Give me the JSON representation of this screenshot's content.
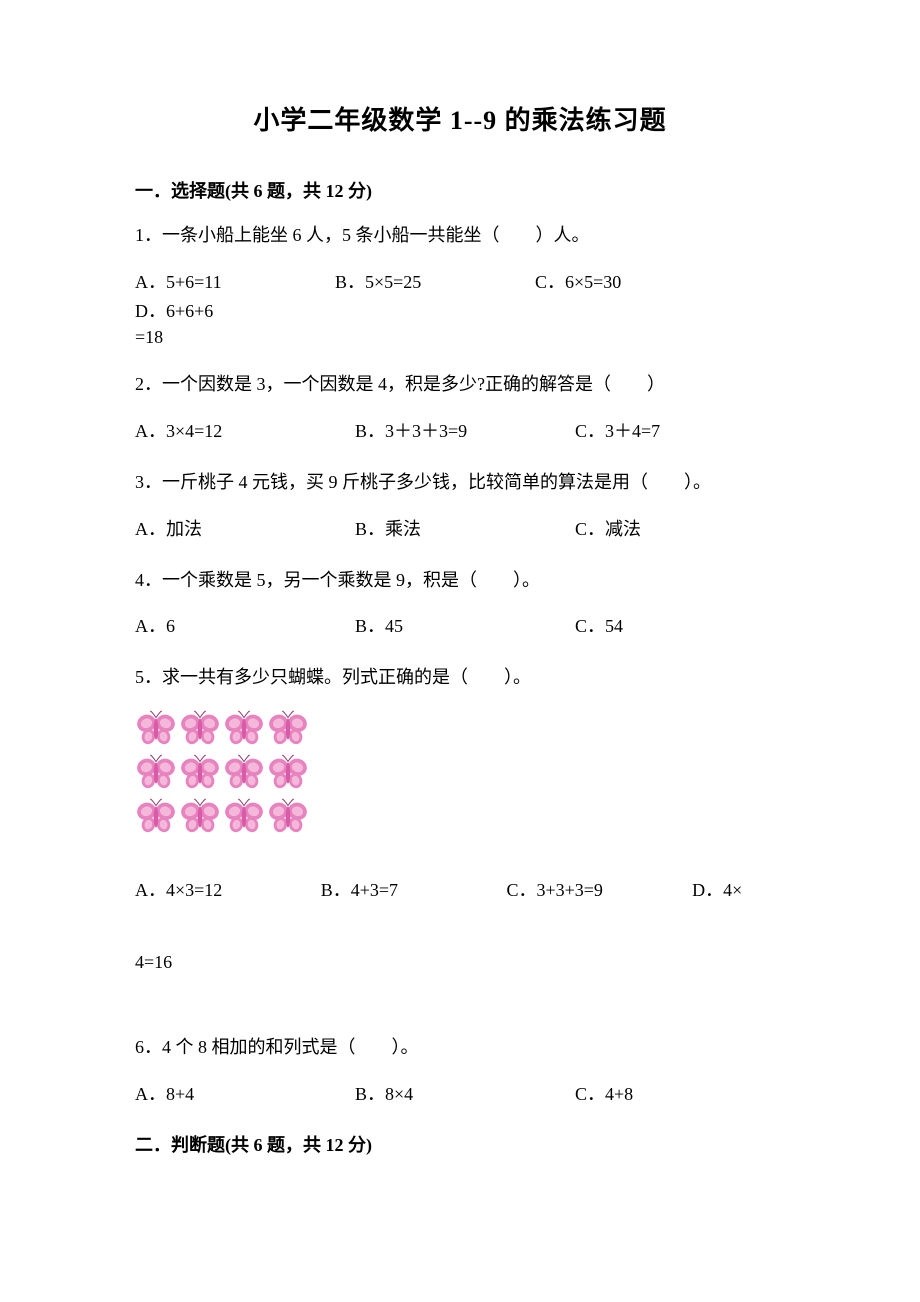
{
  "title": "小学二年级数学 1--9 的乘法练习题",
  "section1": {
    "header": "一．选择题(共 6 题，共 12 分)",
    "q1": {
      "text": "1．一条小船上能坐 6 人，5 条小船一共能坐（　　）人。",
      "a": "A．5+6=11",
      "b": "B．5×5=25",
      "c": "C．6×5=30",
      "d": "D．6+6+6",
      "overflow": "=18"
    },
    "q2": {
      "text": "2．一个因数是 3，一个因数是 4，积是多少?正确的解答是（　　）",
      "a": "A．3×4=12",
      "b": "B．3＋3＋3=9",
      "c": "C．3＋4=7"
    },
    "q3": {
      "text": "3．一斤桃子 4 元钱，买 9 斤桃子多少钱，比较简单的算法是用（　　）。",
      "a": "A．加法",
      "b": "B．乘法",
      "c": "C．减法"
    },
    "q4": {
      "text": "4．一个乘数是 5，另一个乘数是 9，积是（　　）。",
      "a": "A．6",
      "b": "B．45",
      "c": "C．54"
    },
    "q5": {
      "text": "5．求一共有多少只蝴蝶。列式正确的是（　　）。",
      "a": "A．4×3=12",
      "b": "B．4+3=7",
      "c": "C．3+3+3=9",
      "d": "D．4×",
      "line2": "4=16"
    },
    "q6": {
      "text": "6．4 个 8 相加的和列式是（　　）。",
      "a": "A．8+4",
      "b": "B．8×4",
      "c": "C．4+8"
    }
  },
  "section2": {
    "header": "二．判断题(共 6 题，共 12 分)"
  },
  "butterfly": {
    "rows": 3,
    "cols": 4,
    "body_color": "#d95ba8",
    "wing_color": "#e784bf",
    "wing_light": "#f4b8db",
    "antenna_color": "#8a3066"
  },
  "colors": {
    "background": "#ffffff",
    "text": "#000000"
  },
  "typography": {
    "title_fontsize": 26,
    "body_fontsize": 18,
    "font_family": "SimSun"
  }
}
